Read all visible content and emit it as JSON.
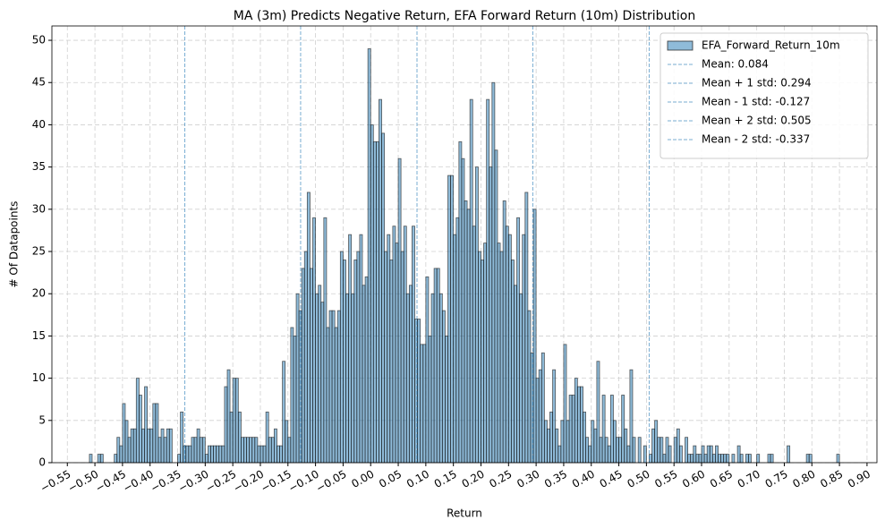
{
  "chart_data": {
    "type": "histogram",
    "title": "MA (3m) Predicts Negative Return, EFA Forward Return (10m) Distribution",
    "xlabel": "Return",
    "ylabel": "# Of Datapoints",
    "series": [
      {
        "name": "EFA_Forward_Return_10m",
        "color": "#1f77b4",
        "bins": [
          -0.51,
          -0.505,
          -0.5,
          -0.495,
          -0.49,
          -0.485,
          -0.48,
          -0.475,
          -0.47,
          -0.465,
          -0.46,
          -0.455,
          -0.45,
          -0.445,
          -0.44,
          -0.435,
          -0.43,
          -0.425,
          -0.42,
          -0.415,
          -0.41,
          -0.405,
          -0.4,
          -0.395,
          -0.39,
          -0.385,
          -0.38,
          -0.375,
          -0.37,
          -0.365,
          -0.36,
          -0.355,
          -0.35,
          -0.345,
          -0.34,
          -0.335,
          -0.33,
          -0.325,
          -0.32,
          -0.315,
          -0.31,
          -0.305,
          -0.3,
          -0.295,
          -0.29,
          -0.285,
          -0.28,
          -0.275,
          -0.27,
          -0.265,
          -0.26,
          -0.255,
          -0.25,
          -0.245,
          -0.24,
          -0.235,
          -0.23,
          -0.225,
          -0.22,
          -0.215,
          -0.21,
          -0.205,
          -0.2,
          -0.195,
          -0.19,
          -0.185,
          -0.18,
          -0.175,
          -0.17,
          -0.165,
          -0.16,
          -0.155,
          -0.15,
          -0.145,
          -0.14,
          -0.135,
          -0.13,
          -0.125,
          -0.12,
          -0.115,
          -0.11,
          -0.105,
          -0.1,
          -0.095,
          -0.09,
          -0.085,
          -0.08,
          -0.075,
          -0.07,
          -0.065,
          -0.06,
          -0.055,
          -0.05,
          -0.045,
          -0.04,
          -0.035,
          -0.03,
          -0.025,
          -0.02,
          -0.015,
          -0.01,
          -0.005,
          0,
          0.005,
          0.01,
          0.015,
          0.02,
          0.025,
          0.03,
          0.035,
          0.04,
          0.045,
          0.05,
          0.055,
          0.06,
          0.065,
          0.07,
          0.075,
          0.08,
          0.085,
          0.09,
          0.095,
          0.1,
          0.105,
          0.11,
          0.115,
          0.12,
          0.125,
          0.13,
          0.135,
          0.14,
          0.145,
          0.15,
          0.155,
          0.16,
          0.165,
          0.17,
          0.175,
          0.18,
          0.185,
          0.19,
          0.195,
          0.2,
          0.205,
          0.21,
          0.215,
          0.22,
          0.225,
          0.23,
          0.235,
          0.24,
          0.245,
          0.25,
          0.255,
          0.26,
          0.265,
          0.27,
          0.275,
          0.28,
          0.285,
          0.29,
          0.295,
          0.3,
          0.305,
          0.31,
          0.315,
          0.32,
          0.325,
          0.33,
          0.335,
          0.34,
          0.345,
          0.35,
          0.355,
          0.36,
          0.365,
          0.37,
          0.375,
          0.38,
          0.385,
          0.39,
          0.395,
          0.4,
          0.405,
          0.41,
          0.415,
          0.42,
          0.425,
          0.43,
          0.435,
          0.44,
          0.445,
          0.45,
          0.455,
          0.46,
          0.465,
          0.47,
          0.475,
          0.48,
          0.485,
          0.49,
          0.495,
          0.5,
          0.505,
          0.51,
          0.515,
          0.52,
          0.525,
          0.53,
          0.535,
          0.54,
          0.545,
          0.55,
          0.555,
          0.56,
          0.565,
          0.57,
          0.575,
          0.58,
          0.585,
          0.59,
          0.595,
          0.6,
          0.605,
          0.61,
          0.615,
          0.62,
          0.625,
          0.63,
          0.635,
          0.64,
          0.645,
          0.65,
          0.655,
          0.66,
          0.665,
          0.67,
          0.675,
          0.68,
          0.685,
          0.69,
          0.695,
          0.7,
          0.705,
          0.71,
          0.715,
          0.72,
          0.725,
          0.73,
          0.735,
          0.74,
          0.745,
          0.75,
          0.755,
          0.76,
          0.765,
          0.77,
          0.775,
          0.78,
          0.785,
          0.79,
          0.795,
          0.8,
          0.805,
          0.81,
          0.815,
          0.82,
          0.825,
          0.83,
          0.835,
          0.84,
          0.845,
          0.85
        ],
        "values": [
          1,
          0,
          0,
          1,
          1,
          0,
          0,
          0,
          0,
          1,
          3,
          2,
          7,
          5,
          3,
          4,
          4,
          10,
          8,
          4,
          9,
          4,
          4,
          7,
          7,
          3,
          4,
          3,
          4,
          4,
          0,
          0,
          1,
          6,
          2,
          2,
          2,
          3,
          3,
          4,
          3,
          3,
          1,
          2,
          2,
          2,
          2,
          2,
          2,
          9,
          11,
          6,
          10,
          10,
          6,
          3,
          3,
          3,
          3,
          3,
          3,
          2,
          2,
          2,
          6,
          3,
          3,
          4,
          2,
          2,
          12,
          5,
          3,
          16,
          15,
          20,
          18,
          23,
          25,
          32,
          23,
          29,
          20,
          21,
          19,
          29,
          16,
          18,
          18,
          16,
          18,
          25,
          24,
          20,
          27,
          20,
          24,
          25,
          27,
          21,
          22,
          49,
          40,
          38,
          38,
          43,
          39,
          25,
          27,
          24,
          28,
          26,
          36,
          25,
          28,
          20,
          21,
          28,
          17,
          17,
          14,
          14,
          22,
          15,
          20,
          23,
          23,
          20,
          18,
          15,
          34,
          34,
          27,
          29,
          38,
          36,
          31,
          30,
          43,
          28,
          35,
          25,
          24,
          26,
          43,
          35,
          45,
          37,
          26,
          25,
          31,
          28,
          27,
          24,
          21,
          29,
          20,
          27,
          32,
          18,
          13,
          30,
          10,
          11,
          13,
          5,
          4,
          6,
          11,
          4,
          2,
          5,
          14,
          5,
          8,
          8,
          10,
          9,
          9,
          6,
          3,
          2,
          5,
          4,
          12,
          3,
          8,
          3,
          2,
          8,
          5,
          3,
          3,
          8,
          4,
          2,
          11,
          3,
          0,
          3,
          0,
          2,
          0,
          1,
          4,
          5,
          3,
          3,
          1,
          3,
          2,
          0,
          3,
          4,
          2,
          0,
          3,
          1,
          1,
          2,
          1,
          1,
          2,
          1,
          2,
          2,
          1,
          2,
          1,
          1,
          1,
          1,
          0,
          1,
          0,
          2,
          1,
          0,
          1,
          1,
          0,
          0,
          1,
          0,
          0,
          0,
          1,
          1,
          0,
          0,
          0,
          0,
          0,
          2,
          0,
          0,
          0,
          0,
          0,
          0,
          1,
          1,
          0,
          0,
          0,
          0,
          0,
          0,
          0,
          0,
          0,
          1
        ]
      }
    ],
    "vlines": [
      {
        "name": "Mean: 0.084",
        "value": 0.084,
        "color": "#1f77b4"
      },
      {
        "name": "Mean + 1 std: 0.294",
        "value": 0.294,
        "color": "#1f77b4"
      },
      {
        "name": "Mean - 1 std: -0.127",
        "value": -0.127,
        "color": "#1f77b4"
      },
      {
        "name": "Mean + 2 std: 0.505",
        "value": 0.505,
        "color": "#1f77b4"
      },
      {
        "name": "Mean - 2 std: -0.337",
        "value": -0.337,
        "color": "#1f77b4"
      }
    ],
    "xlim": [
      -0.578,
      0.918
    ],
    "ylim": [
      0,
      51.7
    ],
    "xticks": [
      {
        "value": -0.55,
        "label": "−0.55"
      },
      {
        "value": -0.5,
        "label": "−0.50"
      },
      {
        "value": -0.45,
        "label": "−0.45"
      },
      {
        "value": -0.4,
        "label": "−0.40"
      },
      {
        "value": -0.35,
        "label": "−0.35"
      },
      {
        "value": -0.3,
        "label": "−0.30"
      },
      {
        "value": -0.25,
        "label": "−0.25"
      },
      {
        "value": -0.2,
        "label": "−0.20"
      },
      {
        "value": -0.15,
        "label": "−0.15"
      },
      {
        "value": -0.1,
        "label": "−0.10"
      },
      {
        "value": -0.05,
        "label": "−0.05"
      },
      {
        "value": 0,
        "label": "0.00"
      },
      {
        "value": 0.05,
        "label": "0.05"
      },
      {
        "value": 0.1,
        "label": "0.10"
      },
      {
        "value": 0.15,
        "label": "0.15"
      },
      {
        "value": 0.2,
        "label": "0.20"
      },
      {
        "value": 0.25,
        "label": "0.25"
      },
      {
        "value": 0.3,
        "label": "0.30"
      },
      {
        "value": 0.35,
        "label": "0.35"
      },
      {
        "value": 0.4,
        "label": "0.40"
      },
      {
        "value": 0.45,
        "label": "0.45"
      },
      {
        "value": 0.5,
        "label": "0.50"
      },
      {
        "value": 0.55,
        "label": "0.55"
      },
      {
        "value": 0.6,
        "label": "0.60"
      },
      {
        "value": 0.65,
        "label": "0.65"
      },
      {
        "value": 0.7,
        "label": "0.70"
      },
      {
        "value": 0.75,
        "label": "0.75"
      },
      {
        "value": 0.8,
        "label": "0.80"
      },
      {
        "value": 0.85,
        "label": "0.85"
      },
      {
        "value": 0.9,
        "label": "0.90"
      }
    ],
    "yticks": [
      0,
      5,
      10,
      15,
      20,
      25,
      30,
      35,
      40,
      45,
      50
    ],
    "grid": true,
    "legend": "upper right"
  }
}
